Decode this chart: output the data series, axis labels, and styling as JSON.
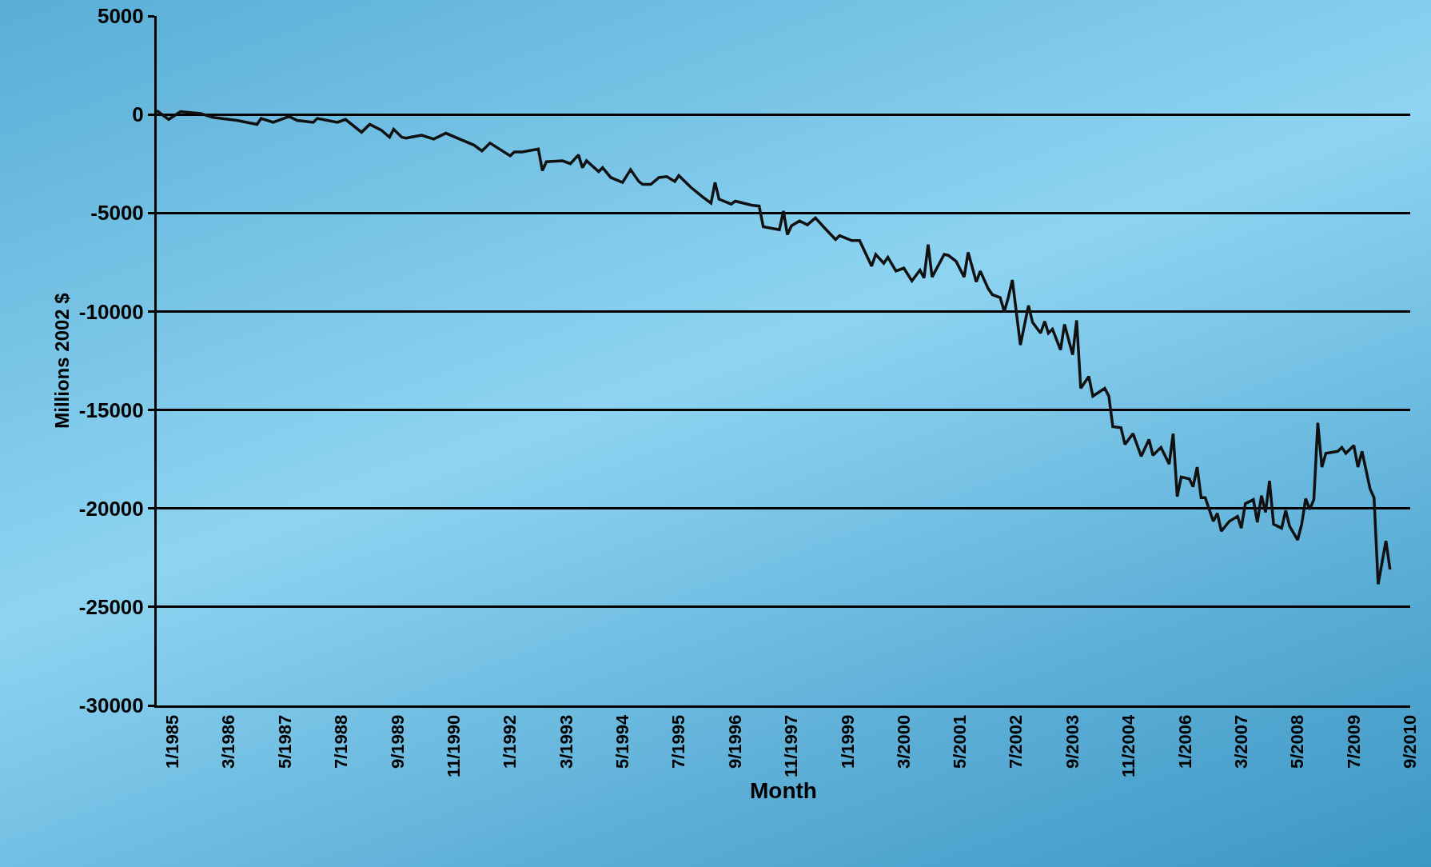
{
  "chart_data": {
    "type": "line",
    "xlabel": "Month",
    "ylabel": "Millions 2002 $",
    "x": [
      "1984-09",
      "1984-12",
      "1985-03",
      "1985-08",
      "1985-11",
      "1986-05",
      "1986-10",
      "1986-11",
      "1987-02",
      "1987-06",
      "1987-08",
      "1987-12",
      "1988-01",
      "1988-06",
      "1988-08",
      "1988-12",
      "1989-02",
      "1989-05",
      "1989-07",
      "1989-08",
      "1989-10",
      "1989-11",
      "1990-03",
      "1990-06",
      "1990-09",
      "1991-01",
      "1991-04",
      "1991-06",
      "1991-08",
      "1992-01",
      "1992-02",
      "1992-04",
      "1992-08",
      "1992-09",
      "1992-10",
      "1993-02",
      "1993-04",
      "1993-06",
      "1993-07",
      "1993-08",
      "1993-11",
      "1993-12",
      "1994-02",
      "1994-05",
      "1994-07",
      "1994-09",
      "1994-10",
      "1994-12",
      "1995-02",
      "1995-04",
      "1995-06",
      "1995-07",
      "1995-10",
      "1996-01",
      "1996-03",
      "1996-04",
      "1996-05",
      "1996-08",
      "1996-09",
      "1997-01",
      "1997-03",
      "1997-04",
      "1997-08",
      "1997-09",
      "1997-10",
      "1997-11",
      "1998-01",
      "1998-03",
      "1998-05",
      "1998-07",
      "1998-10",
      "1998-11",
      "1999-02",
      "1999-04",
      "1999-07",
      "1999-08",
      "1999-10",
      "1999-11",
      "2000-01",
      "2000-03",
      "2000-05",
      "2000-07",
      "2000-08",
      "2000-09",
      "2000-10",
      "2001-01",
      "2001-02",
      "2001-04",
      "2001-06",
      "2001-07",
      "2001-09",
      "2001-10",
      "2001-12",
      "2002-01",
      "2002-03",
      "2002-04",
      "2002-05",
      "2002-06",
      "2002-08",
      "2002-10",
      "2002-11",
      "2003-01",
      "2003-02",
      "2003-03",
      "2003-04",
      "2003-06",
      "2003-07",
      "2003-09",
      "2003-10",
      "2003-11",
      "2004-01",
      "2004-02",
      "2004-05",
      "2004-06",
      "2004-07",
      "2004-09",
      "2004-10",
      "2004-12",
      "2005-02",
      "2005-04",
      "2005-05",
      "2005-07",
      "2005-09",
      "2005-10",
      "2005-11",
      "2005-12",
      "2006-02",
      "2006-03",
      "2006-04",
      "2006-05",
      "2006-06",
      "2006-08",
      "2006-09",
      "2006-10",
      "2006-12",
      "2007-02",
      "2007-03",
      "2007-04",
      "2007-06",
      "2007-07",
      "2007-08",
      "2007-09",
      "2007-10",
      "2007-11",
      "2008-01",
      "2008-02",
      "2008-03",
      "2008-05",
      "2008-06",
      "2008-07",
      "2008-08",
      "2008-09",
      "2008-10",
      "2008-11",
      "2008-12",
      "2009-03",
      "2009-04",
      "2009-05",
      "2009-07",
      "2009-08",
      "2009-09",
      "2009-11",
      "2009-12",
      "2010-01",
      "2010-03",
      "2010-04"
    ],
    "series": [
      {
        "color": "#111111",
        "values": [
          200,
          -250,
          150,
          50,
          -150,
          -300,
          -500,
          -200,
          -400,
          -100,
          -300,
          -400,
          -200,
          -400,
          -250,
          -900,
          -500,
          -800,
          -1150,
          -750,
          -1150,
          -1200,
          -1050,
          -1250,
          -950,
          -1300,
          -1550,
          -1850,
          -1450,
          -2100,
          -1900,
          -1900,
          -1750,
          -2850,
          -2400,
          -2350,
          -2500,
          -2050,
          -2700,
          -2350,
          -2900,
          -2700,
          -3200,
          -3450,
          -2800,
          -3400,
          -3550,
          -3550,
          -3200,
          -3150,
          -3400,
          -3100,
          -3700,
          -4200,
          -4500,
          -3450,
          -4300,
          -4550,
          -4400,
          -4600,
          -4650,
          -5700,
          -5850,
          -4900,
          -6100,
          -5650,
          -5400,
          -5600,
          -5250,
          -5700,
          -6350,
          -6150,
          -6400,
          -6400,
          -7700,
          -7100,
          -7550,
          -7250,
          -7950,
          -7800,
          -8450,
          -7900,
          -8300,
          -6600,
          -8250,
          -7100,
          -7150,
          -7450,
          -8250,
          -7000,
          -8500,
          -7950,
          -8850,
          -9150,
          -9300,
          -10000,
          -9300,
          -8400,
          -11700,
          -9700,
          -10550,
          -11100,
          -10500,
          -11100,
          -10900,
          -11950,
          -10650,
          -12200,
          -10450,
          -13900,
          -13300,
          -14300,
          -13900,
          -14300,
          -15850,
          -15900,
          -16750,
          -16200,
          -17350,
          -16500,
          -17300,
          -16900,
          -17750,
          -16200,
          -19400,
          -18400,
          -18500,
          -18900,
          -17900,
          -19450,
          -19450,
          -20650,
          -20250,
          -21150,
          -20650,
          -20400,
          -21000,
          -19750,
          -19550,
          -20700,
          -19350,
          -20200,
          -18600,
          -20800,
          -21000,
          -20100,
          -20900,
          -21600,
          -20800,
          -19500,
          -20050,
          -19550,
          -15650,
          -17900,
          -17200,
          -17100,
          -16900,
          -17200,
          -16800,
          -17900,
          -17100,
          -19000,
          -19450,
          -23850,
          -21650,
          -23100
        ]
      }
    ],
    "xlim": [
      "1984-09",
      "2010-09"
    ],
    "xticks": [
      {
        "value": "1985-01",
        "label": "1/1985"
      },
      {
        "value": "1986-03",
        "label": "3/1986"
      },
      {
        "value": "1987-05",
        "label": "5/1987"
      },
      {
        "value": "1988-07",
        "label": "7/1988"
      },
      {
        "value": "1989-09",
        "label": "9/1989"
      },
      {
        "value": "1990-11",
        "label": "11/1990"
      },
      {
        "value": "1992-01",
        "label": "1/1992"
      },
      {
        "value": "1993-03",
        "label": "3/1993"
      },
      {
        "value": "1994-05",
        "label": "5/1994"
      },
      {
        "value": "1995-07",
        "label": "7/1995"
      },
      {
        "value": "1996-09",
        "label": "9/1996"
      },
      {
        "value": "1997-11",
        "label": "11/1997"
      },
      {
        "value": "1999-01",
        "label": "1/1999"
      },
      {
        "value": "2000-03",
        "label": "3/2000"
      },
      {
        "value": "2001-05",
        "label": "5/2001"
      },
      {
        "value": "2002-07",
        "label": "7/2002"
      },
      {
        "value": "2003-09",
        "label": "9/2003"
      },
      {
        "value": "2004-11",
        "label": "11/2004"
      },
      {
        "value": "2006-01",
        "label": "1/2006"
      },
      {
        "value": "2007-03",
        "label": "3/2007"
      },
      {
        "value": "2008-05",
        "label": "5/2008"
      },
      {
        "value": "2009-07",
        "label": "7/2009"
      },
      {
        "value": "2010-09",
        "label": "9/2010"
      }
    ],
    "ylim": [
      -30000,
      5000
    ],
    "yticks": [
      -30000,
      -25000,
      -20000,
      -15000,
      -10000,
      -5000,
      0,
      5000
    ],
    "grid": "y",
    "marker": "none",
    "line_style": "solid"
  }
}
